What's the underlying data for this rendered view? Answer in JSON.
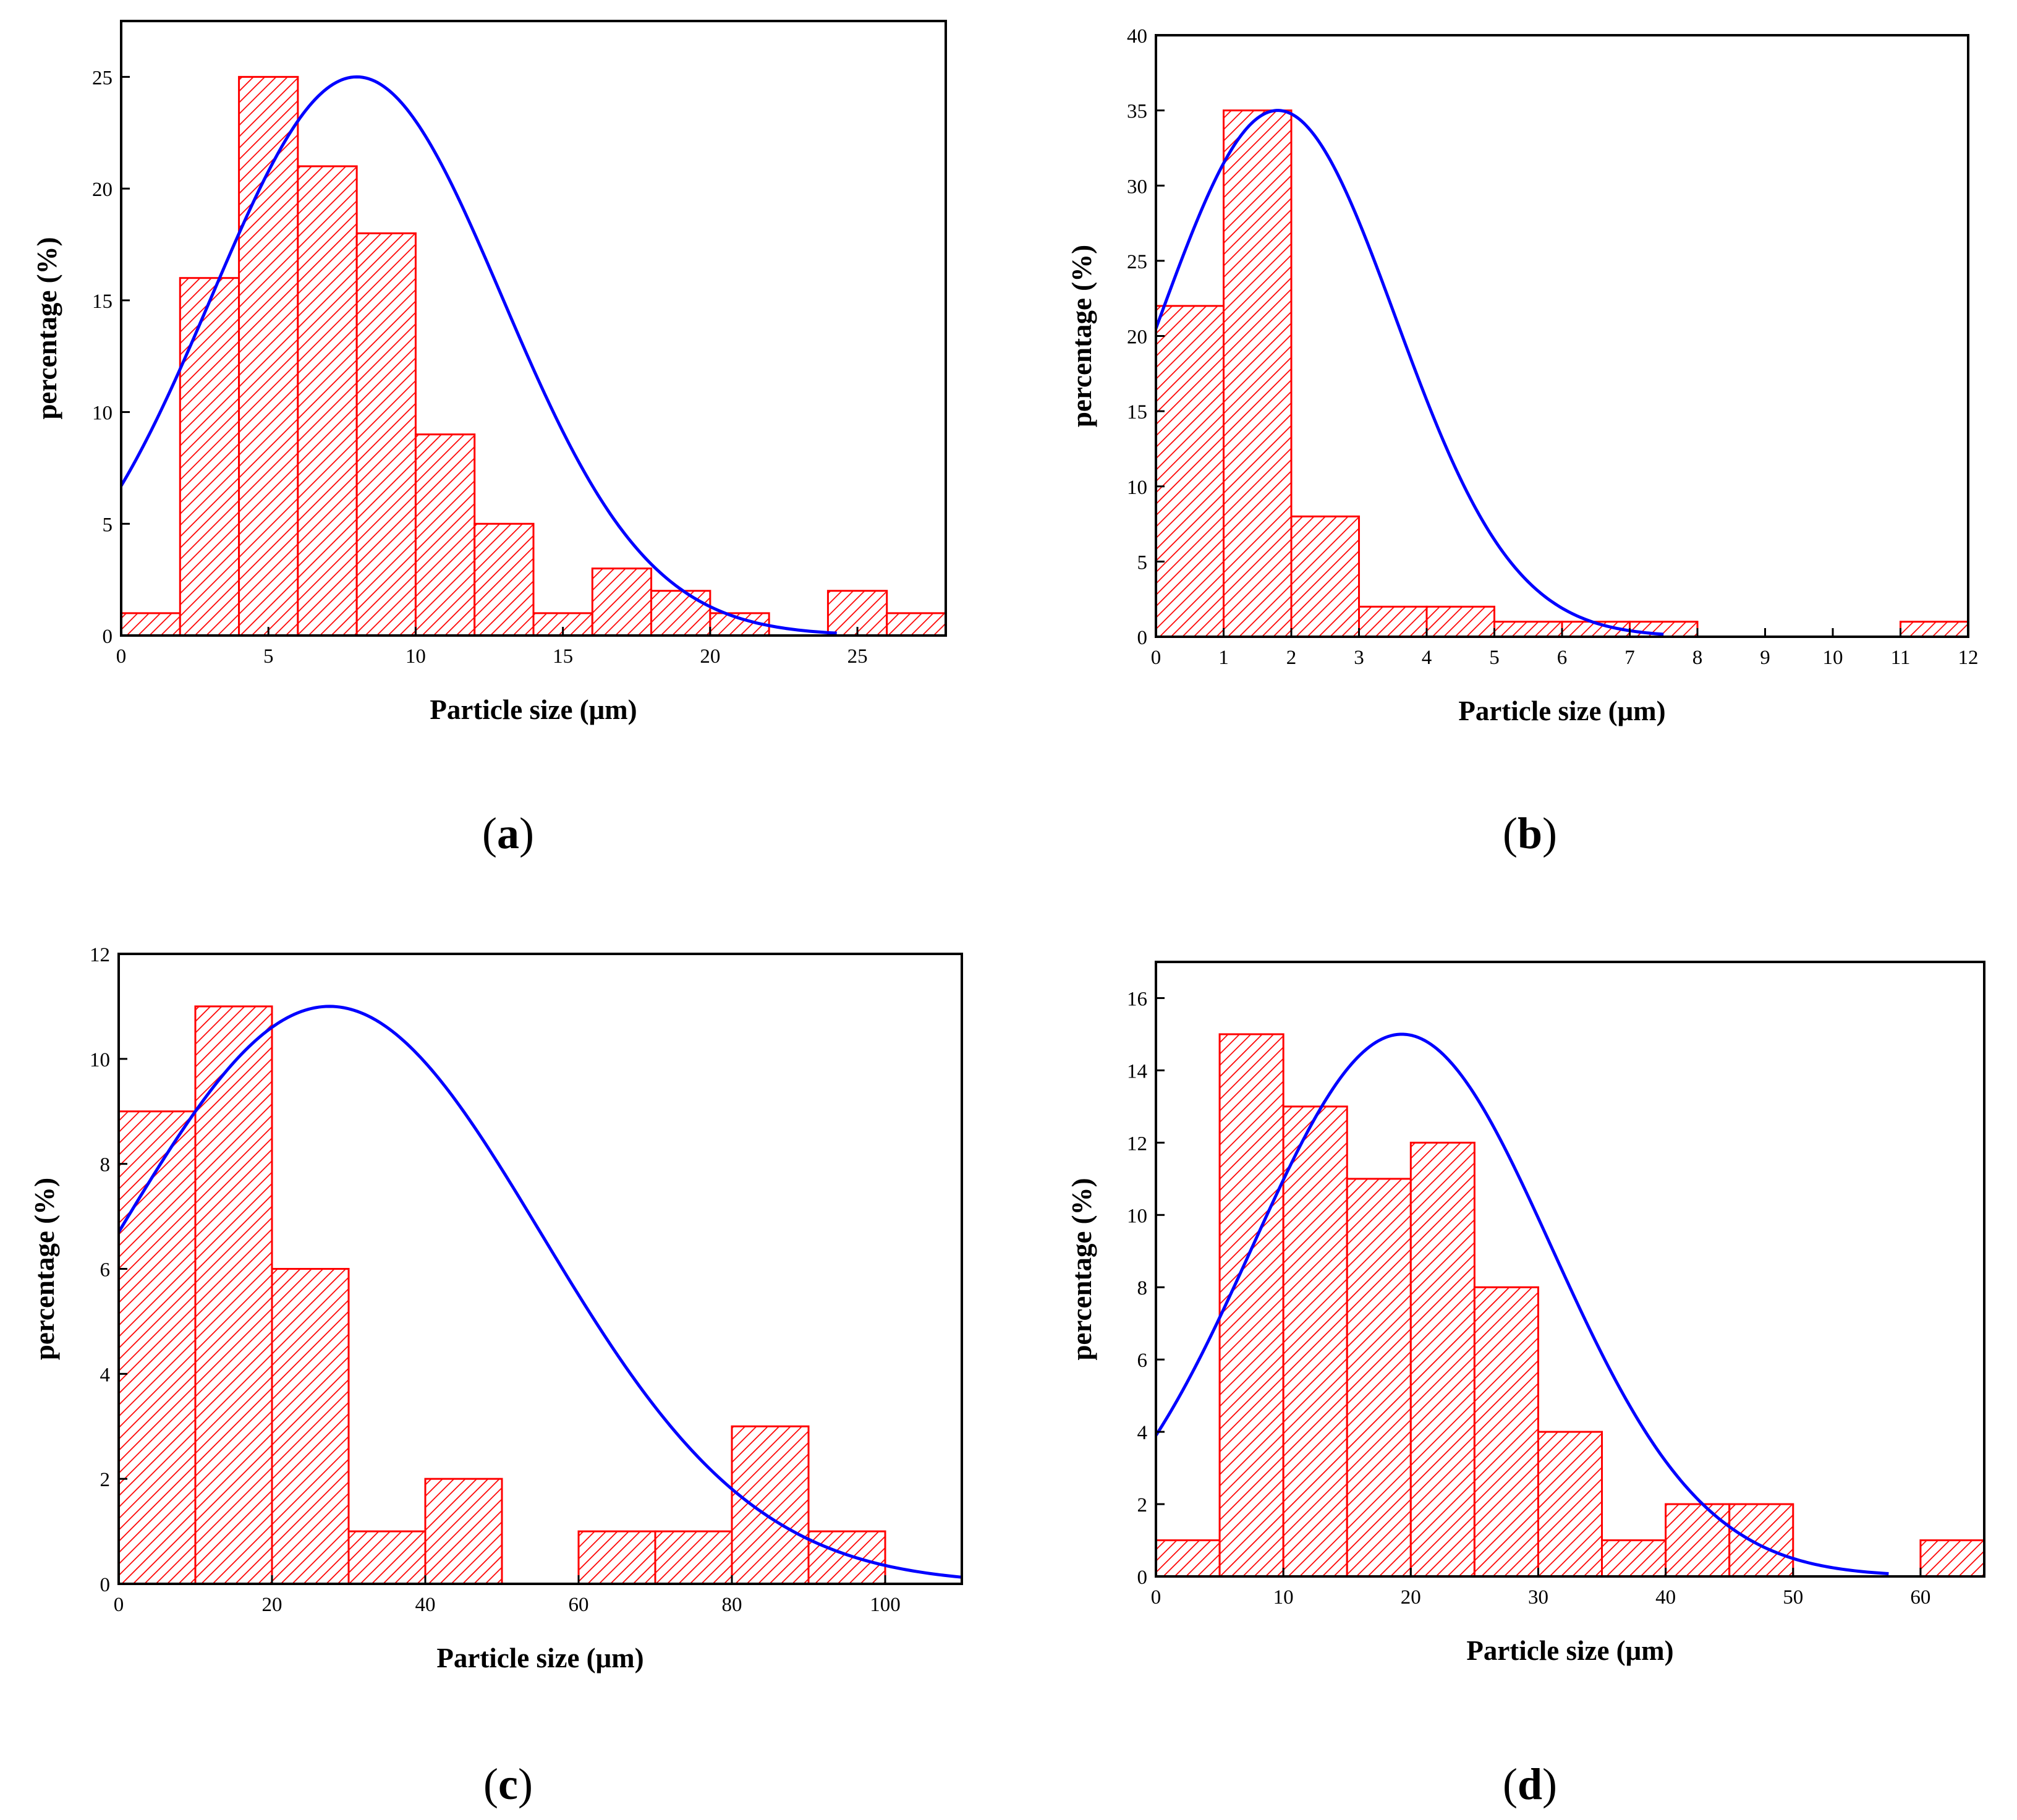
{
  "figure": {
    "panels": [
      "a",
      "b",
      "c",
      "d"
    ]
  },
  "colors": {
    "bar_stroke": "#ff0000",
    "curve": "#0000ff",
    "axis": "#000000"
  },
  "chart_data": [
    {
      "id": "a",
      "panel_label": "a",
      "type": "bar",
      "title": "",
      "xlabel": "Particle size (μm)",
      "ylabel": "percentage (%)",
      "xlim": [
        0,
        28
      ],
      "ylim": [
        0,
        27.5
      ],
      "xticks": [
        0,
        5,
        10,
        15,
        20,
        25
      ],
      "yticks": [
        0,
        5,
        10,
        15,
        20,
        25
      ],
      "bins": [
        {
          "x0": 0,
          "x1": 2,
          "value": 1
        },
        {
          "x0": 2,
          "x1": 4,
          "value": 16
        },
        {
          "x0": 4,
          "x1": 6,
          "value": 25
        },
        {
          "x0": 6,
          "x1": 8,
          "value": 21
        },
        {
          "x0": 8,
          "x1": 10,
          "value": 18
        },
        {
          "x0": 10,
          "x1": 12,
          "value": 9
        },
        {
          "x0": 12,
          "x1": 14,
          "value": 5
        },
        {
          "x0": 14,
          "x1": 16,
          "value": 1
        },
        {
          "x0": 16,
          "x1": 18,
          "value": 3
        },
        {
          "x0": 18,
          "x1": 20,
          "value": 2
        },
        {
          "x0": 20,
          "x1": 22,
          "value": 1
        },
        {
          "x0": 22,
          "x1": 24,
          "value": 0
        },
        {
          "x0": 24,
          "x1": 26,
          "value": 2
        },
        {
          "x0": 26,
          "x1": 28,
          "value": 1
        }
      ],
      "fit": {
        "type": "normal",
        "peak_x": 8,
        "peak_y": 25,
        "value_at_0": 6.7,
        "x_range": [
          0,
          24.3
        ]
      }
    },
    {
      "id": "b",
      "panel_label": "b",
      "type": "bar",
      "title": "",
      "xlabel": "Particle size (μm)",
      "ylabel": "percentage (%)",
      "xlim": [
        0,
        12
      ],
      "ylim": [
        0,
        40
      ],
      "xticks": [
        0,
        1,
        2,
        3,
        4,
        5,
        6,
        7,
        8,
        9,
        10,
        11,
        12
      ],
      "yticks": [
        0,
        5,
        10,
        15,
        20,
        25,
        30,
        35,
        40
      ],
      "bins": [
        {
          "x0": 0,
          "x1": 1,
          "value": 22
        },
        {
          "x0": 1,
          "x1": 2,
          "value": 35
        },
        {
          "x0": 2,
          "x1": 3,
          "value": 8
        },
        {
          "x0": 3,
          "x1": 4,
          "value": 2
        },
        {
          "x0": 4,
          "x1": 5,
          "value": 2
        },
        {
          "x0": 5,
          "x1": 6,
          "value": 1
        },
        {
          "x0": 6,
          "x1": 7,
          "value": 1
        },
        {
          "x0": 7,
          "x1": 8,
          "value": 1
        },
        {
          "x0": 8,
          "x1": 9,
          "value": 0
        },
        {
          "x0": 9,
          "x1": 10,
          "value": 0
        },
        {
          "x0": 10,
          "x1": 11,
          "value": 0
        },
        {
          "x0": 11,
          "x1": 12,
          "value": 1
        }
      ],
      "fit": {
        "type": "normal",
        "peak_x": 1.8,
        "peak_y": 35,
        "value_at_0": 20.5,
        "x_range": [
          0,
          7.5
        ]
      }
    },
    {
      "id": "c",
      "panel_label": "c",
      "type": "bar",
      "title": "",
      "xlabel": "Particle size (μm)",
      "ylabel": "percentage (%)",
      "xlim": [
        0,
        110
      ],
      "ylim": [
        0,
        12
      ],
      "xticks": [
        0,
        20,
        40,
        60,
        80,
        100
      ],
      "yticks": [
        0,
        2,
        4,
        6,
        8,
        10,
        12
      ],
      "bins": [
        {
          "x0": 0,
          "x1": 10,
          "value": 9
        },
        {
          "x0": 10,
          "x1": 20,
          "value": 11
        },
        {
          "x0": 20,
          "x1": 30,
          "value": 6
        },
        {
          "x0": 30,
          "x1": 40,
          "value": 1
        },
        {
          "x0": 40,
          "x1": 50,
          "value": 2
        },
        {
          "x0": 50,
          "x1": 60,
          "value": 0
        },
        {
          "x0": 60,
          "x1": 70,
          "value": 1
        },
        {
          "x0": 70,
          "x1": 80,
          "value": 1
        },
        {
          "x0": 80,
          "x1": 90,
          "value": 3
        },
        {
          "x0": 90,
          "x1": 100,
          "value": 1
        }
      ],
      "fit": {
        "type": "normal",
        "peak_x": 27.5,
        "peak_y": 11,
        "value_at_0": 6.7,
        "x_range": [
          0,
          110
        ]
      }
    },
    {
      "id": "d",
      "panel_label": "d",
      "type": "bar",
      "title": "",
      "xlabel": "Particle size (μm)",
      "ylabel": "percentage (%)",
      "xlim": [
        0,
        65
      ],
      "ylim": [
        0,
        17
      ],
      "xticks": [
        0,
        10,
        20,
        30,
        40,
        50,
        60
      ],
      "yticks": [
        0,
        2,
        4,
        6,
        8,
        10,
        12,
        14,
        16
      ],
      "bins": [
        {
          "x0": 0,
          "x1": 5,
          "value": 1
        },
        {
          "x0": 5,
          "x1": 10,
          "value": 15
        },
        {
          "x0": 10,
          "x1": 15,
          "value": 13
        },
        {
          "x0": 15,
          "x1": 20,
          "value": 11
        },
        {
          "x0": 20,
          "x1": 25,
          "value": 12
        },
        {
          "x0": 25,
          "x1": 30,
          "value": 8
        },
        {
          "x0": 30,
          "x1": 35,
          "value": 4
        },
        {
          "x0": 35,
          "x1": 40,
          "value": 1
        },
        {
          "x0": 40,
          "x1": 45,
          "value": 2
        },
        {
          "x0": 45,
          "x1": 50,
          "value": 2
        },
        {
          "x0": 50,
          "x1": 55,
          "value": 0
        },
        {
          "x0": 55,
          "x1": 60,
          "value": 0
        },
        {
          "x0": 60,
          "x1": 65,
          "value": 1
        }
      ],
      "fit": {
        "type": "normal",
        "peak_x": 19.3,
        "peak_y": 15,
        "value_at_0": 3.9,
        "x_range": [
          0,
          57.5
        ]
      }
    }
  ]
}
